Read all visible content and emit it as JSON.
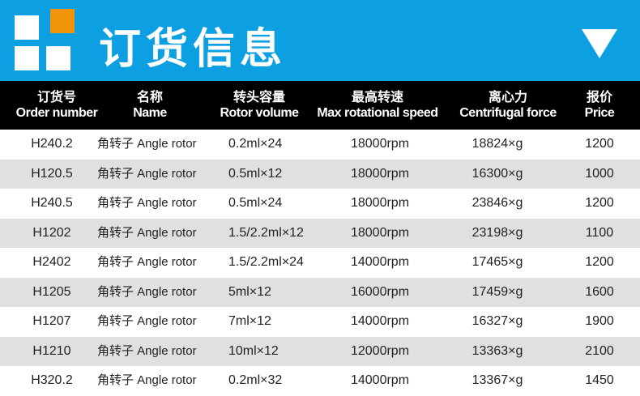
{
  "header": {
    "title": "订货信息",
    "colors": {
      "banner": "#0c9fe2",
      "accent_square": "#f0940a"
    },
    "icons": [
      "logo-squares-icon",
      "triangle-down-icon"
    ]
  },
  "columns": [
    {
      "cn": "订货号",
      "en": "Order number"
    },
    {
      "cn": "名称",
      "en": "Name"
    },
    {
      "cn": "转头容量",
      "en": "Rotor volume"
    },
    {
      "cn": "最高转速",
      "en": "Max rotational speed"
    },
    {
      "cn": "离心力",
      "en": "Centrifugal force"
    },
    {
      "cn": "报价",
      "en": "Price"
    }
  ],
  "rows": [
    [
      "H240.2",
      "角转子 Angle rotor",
      "0.2ml×24",
      "18000rpm",
      "18824×g",
      "1200"
    ],
    [
      "H120.5",
      "角转子 Angle rotor",
      "0.5ml×12",
      "18000rpm",
      "16300×g",
      "1000"
    ],
    [
      "H240.5",
      "角转子 Angle rotor",
      "0.5ml×24",
      "18000rpm",
      "23846×g",
      "1200"
    ],
    [
      "H1202",
      "角转子 Angle rotor",
      "1.5/2.2ml×12",
      "18000rpm",
      "23198×g",
      "1100"
    ],
    [
      "H2402",
      "角转子 Angle rotor",
      "1.5/2.2ml×24",
      "14000rpm",
      "17465×g",
      "1200"
    ],
    [
      "H1205",
      "角转子 Angle rotor",
      "5ml×12",
      "16000rpm",
      "17459×g",
      "1600"
    ],
    [
      "H1207",
      "角转子 Angle rotor",
      "7ml×12",
      "14000rpm",
      "16327×g",
      "1900"
    ],
    [
      "H1210",
      "角转子 Angle rotor",
      "10ml×12",
      "12000rpm",
      "13363×g",
      "2100"
    ],
    [
      "H320.2",
      "角转子 Angle rotor",
      "0.2ml×32",
      "14000rpm",
      "13367×g",
      "1450"
    ]
  ]
}
